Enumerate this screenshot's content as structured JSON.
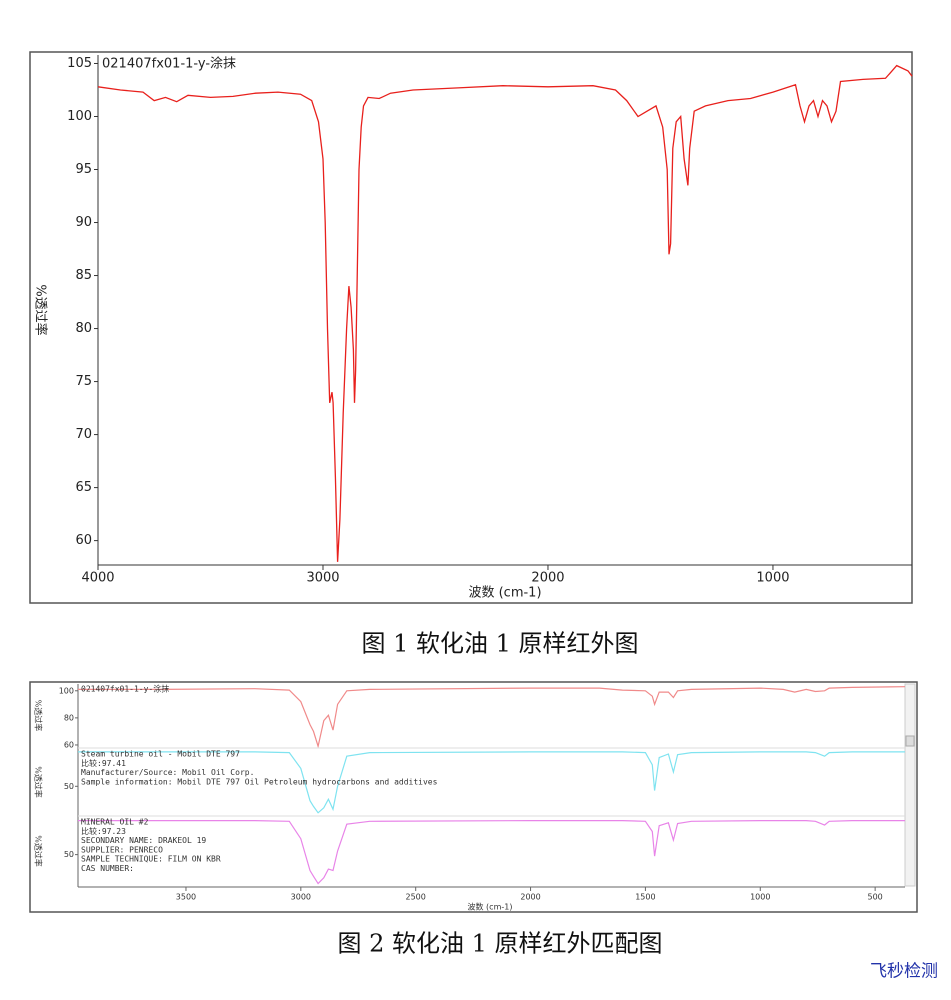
{
  "chart_data": [
    {
      "type": "line",
      "title": "021407fx01-1-y-涂抹",
      "x_label": "波数 (cm-1)",
      "y_label": "%透过率",
      "xlim": [
        4000,
        382
      ],
      "ylim": [
        57.7,
        105.8
      ],
      "xticks": [
        4000,
        3000,
        2000,
        1000
      ],
      "yticks": [
        60,
        65,
        70,
        75,
        80,
        85,
        90,
        95,
        100,
        105
      ],
      "color": "#e8201c",
      "x": [
        4000,
        3900,
        3800,
        3750,
        3700,
        3650,
        3600,
        3500,
        3400,
        3300,
        3200,
        3100,
        3050,
        3020,
        3000,
        2990,
        2980,
        2970,
        2960,
        2955,
        2945,
        2935,
        2925,
        2910,
        2895,
        2885,
        2875,
        2865,
        2860,
        2855,
        2850,
        2840,
        2830,
        2820,
        2800,
        2750,
        2700,
        2600,
        2400,
        2200,
        2000,
        1800,
        1700,
        1650,
        1600,
        1560,
        1520,
        1490,
        1470,
        1462,
        1455,
        1445,
        1430,
        1410,
        1395,
        1378,
        1370,
        1350,
        1300,
        1200,
        1100,
        1000,
        900,
        880,
        860,
        840,
        820,
        800,
        780,
        760,
        740,
        720,
        700,
        600,
        500,
        450,
        400,
        382
      ],
      "values": [
        102.8,
        102.5,
        102.3,
        101.5,
        101.8,
        101.4,
        102,
        101.8,
        101.9,
        102.2,
        102.3,
        102.1,
        101.5,
        99.5,
        96,
        90,
        80,
        73,
        74,
        73,
        66,
        58,
        62,
        72,
        80,
        84,
        82,
        78,
        73,
        76,
        82,
        95,
        99,
        101,
        101.8,
        101.7,
        102.2,
        102.5,
        102.7,
        102.9,
        102.8,
        102.9,
        102.5,
        101.5,
        100,
        100.5,
        101,
        99,
        95,
        87,
        88,
        97,
        99.5,
        100,
        96,
        93.5,
        97,
        100.5,
        101,
        101.5,
        101.7,
        102.3,
        103,
        101,
        99.5,
        101,
        101.5,
        100,
        101.5,
        101,
        99.5,
        100.5,
        103.3,
        103.5,
        103.6,
        104.8,
        104.3,
        103.8
      ]
    },
    {
      "type": "stacked",
      "x_label": "波数 (cm-1)",
      "xlim": [
        3970,
        370
      ],
      "xticks": [
        3500,
        3000,
        2500,
        2000,
        1500,
        1000,
        500
      ],
      "x": [
        3970,
        3600,
        3200,
        3050,
        3000,
        2960,
        2945,
        2925,
        2900,
        2880,
        2860,
        2840,
        2800,
        2700,
        2000,
        1700,
        1600,
        1500,
        1470,
        1460,
        1440,
        1400,
        1378,
        1360,
        1300,
        1000,
        900,
        850,
        800,
        760,
        720,
        700,
        600,
        370
      ],
      "panels": [
        {
          "y_label": "%透过率",
          "ylim": [
            58.5,
            105
          ],
          "yticks": [
            60,
            80,
            100
          ],
          "color": "#f08a8a",
          "notes": [
            "021407fx01-1-y-涂抹"
          ],
          "values": [
            101,
            101,
            101.5,
            100.5,
            92,
            75,
            70,
            59,
            78,
            82,
            71,
            90,
            100,
            101,
            102,
            102,
            100.5,
            100,
            96,
            90,
            99,
            99,
            95,
            100,
            101,
            102,
            101,
            99,
            101,
            99.5,
            100,
            102,
            102.5,
            103
          ]
        },
        {
          "y_label": "%透过率",
          "ylim": [
            10,
            102
          ],
          "yticks": [
            50
          ],
          "color": "#7fe3f0",
          "notes": [
            "Steam turbine oil - Mobil DTE 797",
            "比较:97.41",
            "Manufacturer/Source:  Mobil Oil Corp.",
            "Sample information:  Mobil DTE 797 Oil Petroleum hydrocarbons and additives"
          ],
          "values": [
            98,
            98,
            98,
            97,
            75,
            30,
            22,
            13,
            20,
            32,
            18,
            50,
            92,
            97,
            98,
            98,
            98,
            97,
            80,
            44,
            90,
            95,
            70,
            94,
            97,
            98,
            98,
            98,
            98,
            97,
            92,
            97,
            98,
            98
          ]
        },
        {
          "y_label": "%透过率",
          "ylim": [
            8,
            102
          ],
          "yticks": [
            50
          ],
          "color": "#e884e8",
          "notes": [
            "MINERAL OIL #2",
            "比较:97.23",
            "SECONDARY NAME:  DRAKEOL 19",
            "SUPPLIER:  PENRECO",
            "SAMPLE TECHNIQUE:  FILM ON KBR",
            "CAS NUMBER:"
          ],
          "values": [
            97,
            97,
            97,
            96,
            72,
            28,
            20,
            10,
            18,
            30,
            28,
            55,
            92,
            96,
            97,
            97,
            97,
            96,
            82,
            48,
            90,
            94,
            70,
            93,
            96,
            97,
            97,
            97,
            97,
            96,
            91,
            96,
            97,
            97
          ]
        }
      ]
    }
  ],
  "captions": [
    "图 1 软化油 1 原样红外图",
    "图 2 软化油 1 原样红外匹配图"
  ],
  "watermark": "飞秒检测"
}
